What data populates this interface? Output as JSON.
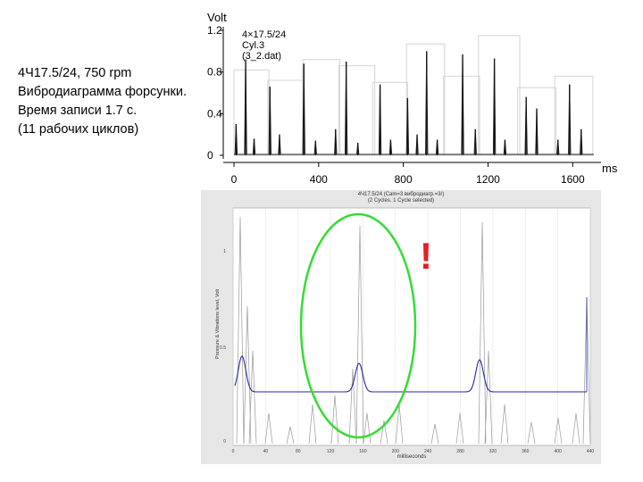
{
  "caption": {
    "lines": [
      "4Ч17.5/24, 750 rpm",
      "Вибродиаграмма форсунки.",
      "Время записи 1.7 с.",
      "(11 рабочих циклов)"
    ]
  },
  "top_chart": {
    "y_unit_label": "Volt",
    "x_unit_label": "ms",
    "info_lines": [
      "4×17.5/24",
      "Cyl.3",
      "(3_2.dat)"
    ]
  },
  "bottom_chart": {
    "title_lines": [
      "4Ч17.5/24 (Cam=3 вибродиагр.=3/)",
      "(2 Cycles. 1 Cycle selected)"
    ],
    "x_axis_label": "milliseconds",
    "y_axis_label": "Pressure & Vibrations level, Volt",
    "exclamation": "!",
    "highlight_color": "#33dd33",
    "trace_color": "#2a2a9a",
    "spikes_color": "#888888"
  },
  "chart_data": [
    {
      "type": "line",
      "title": "",
      "xlabel": "ms",
      "ylabel": "Volt",
      "xlim": [
        0,
        1700
      ],
      "ylim": [
        0,
        1.2
      ],
      "x_ticks": [
        0,
        400,
        800,
        1200,
        1600
      ],
      "y_ticks": [
        0,
        0.4,
        0.8,
        1.2
      ],
      "grid": false,
      "series": [
        {
          "values": [
            {
              "x": 10,
              "y": 0.3
            },
            {
              "x": 55,
              "y": 0.92
            },
            {
              "x": 95,
              "y": 0.16
            },
            {
              "x": 170,
              "y": 0.66
            },
            {
              "x": 215,
              "y": 0.2
            },
            {
              "x": 330,
              "y": 0.88
            },
            {
              "x": 385,
              "y": 0.14
            },
            {
              "x": 480,
              "y": 0.25
            },
            {
              "x": 530,
              "y": 0.9
            },
            {
              "x": 585,
              "y": 0.12
            },
            {
              "x": 690,
              "y": 0.68
            },
            {
              "x": 740,
              "y": 0.15
            },
            {
              "x": 820,
              "y": 0.55
            },
            {
              "x": 865,
              "y": 0.2
            },
            {
              "x": 910,
              "y": 1.0
            },
            {
              "x": 960,
              "y": 0.15
            },
            {
              "x": 1080,
              "y": 0.97
            },
            {
              "x": 1140,
              "y": 0.25
            },
            {
              "x": 1230,
              "y": 0.93
            },
            {
              "x": 1280,
              "y": 0.15
            },
            {
              "x": 1380,
              "y": 0.56
            },
            {
              "x": 1430,
              "y": 0.45
            },
            {
              "x": 1530,
              "y": 0.15
            },
            {
              "x": 1585,
              "y": 0.68
            },
            {
              "x": 1640,
              "y": 0.25
            }
          ]
        }
      ],
      "envelope_boxes": [
        {
          "x0": 0,
          "x1": 165,
          "y": 0.82
        },
        {
          "x0": 160,
          "x1": 330,
          "y": 0.72
        },
        {
          "x0": 325,
          "x1": 500,
          "y": 0.92
        },
        {
          "x0": 495,
          "x1": 665,
          "y": 0.86
        },
        {
          "x0": 655,
          "x1": 820,
          "y": 0.7
        },
        {
          "x0": 815,
          "x1": 995,
          "y": 1.07
        },
        {
          "x0": 990,
          "x1": 1160,
          "y": 0.76
        },
        {
          "x0": 1155,
          "x1": 1350,
          "y": 1.15
        },
        {
          "x0": 1340,
          "x1": 1520,
          "y": 0.65
        },
        {
          "x0": 1515,
          "x1": 1695,
          "y": 0.76
        }
      ]
    }
  ]
}
